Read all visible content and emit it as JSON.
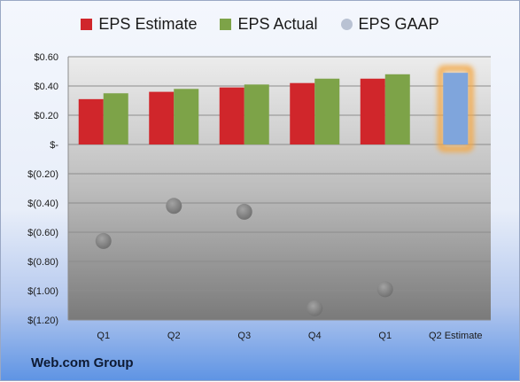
{
  "chart_data": {
    "type": "bar",
    "categories": [
      "Q1",
      "Q2",
      "Q3",
      "Q4",
      "Q1",
      "Q2 Estimate"
    ],
    "series": [
      {
        "name": "EPS Estimate",
        "type": "bar",
        "color": "#d0262b",
        "values": [
          0.31,
          0.36,
          0.39,
          0.42,
          0.45,
          null
        ]
      },
      {
        "name": "EPS Actual",
        "type": "bar",
        "color": "#7da348",
        "values": [
          0.35,
          0.38,
          0.41,
          0.45,
          0.48,
          null
        ]
      },
      {
        "name": "EPS GAAP",
        "type": "scatter",
        "color": "#9ea6b4",
        "values": [
          -0.66,
          -0.42,
          -0.46,
          -1.12,
          -0.99,
          null
        ]
      }
    ],
    "highlight": {
      "category": "Q2 Estimate",
      "value": 0.49,
      "color": "#7fa5dc",
      "glow": "#f5a742"
    },
    "yticks": [
      {
        "value": 0.6,
        "label": "$0.60"
      },
      {
        "value": 0.4,
        "label": "$0.40"
      },
      {
        "value": 0.2,
        "label": "$0.20"
      },
      {
        "value": 0.0,
        "label": "$-"
      },
      {
        "value": -0.2,
        "label": "$(0.20)"
      },
      {
        "value": -0.4,
        "label": "$(0.40)"
      },
      {
        "value": -0.6,
        "label": "$(0.60)"
      },
      {
        "value": -0.8,
        "label": "$(0.80)"
      },
      {
        "value": -1.0,
        "label": "$(1.00)"
      },
      {
        "value": -1.2,
        "label": "$(1.20)"
      }
    ],
    "ylim": [
      -1.2,
      0.6
    ],
    "legend_position": "top",
    "grid": true
  },
  "legend": {
    "estimate": "EPS Estimate",
    "actual": "EPS Actual",
    "gaap": "EPS GAAP"
  },
  "footer": {
    "company": "Web.com Group"
  }
}
